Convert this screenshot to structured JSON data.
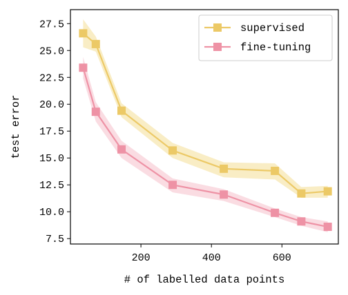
{
  "chart_data": {
    "type": "line",
    "xlabel": "# of labelled data points",
    "ylabel": "test error",
    "xlim": [
      0,
      760
    ],
    "ylim": [
      7.0,
      28.8
    ],
    "x_ticks": [
      200,
      400,
      600
    ],
    "x_tick_labels": [
      "200",
      "400",
      "600"
    ],
    "y_ticks": [
      7.5,
      10.0,
      12.5,
      15.0,
      17.5,
      20.0,
      22.5,
      25.0,
      27.5
    ],
    "y_tick_labels": [
      "7.5",
      "10.0",
      "12.5",
      "15.0",
      "17.5",
      "20.0",
      "22.5",
      "25.0",
      "27.5"
    ],
    "grid": false,
    "legend_position": "top-right",
    "series": [
      {
        "name": "supervised",
        "color": "#ECC966",
        "band_color": "#F3DB8C",
        "x": [
          36,
          72,
          145,
          290,
          435,
          580,
          655,
          730
        ],
        "y": [
          26.6,
          25.6,
          19.4,
          15.7,
          14.0,
          13.8,
          11.7,
          11.9
        ],
        "lower": [
          25.3,
          24.9,
          18.8,
          15.0,
          13.2,
          13.0,
          11.3,
          11.3
        ],
        "upper": [
          27.9,
          26.3,
          20.1,
          16.4,
          14.6,
          14.5,
          12.3,
          12.4
        ]
      },
      {
        "name": "fine-tuning",
        "color": "#EE92A5",
        "band_color": "#F5B9C5",
        "x": [
          36,
          72,
          145,
          290,
          435,
          580,
          655,
          730
        ],
        "y": [
          23.4,
          19.3,
          15.8,
          12.5,
          11.6,
          9.9,
          9.1,
          8.6
        ],
        "lower": [
          22.4,
          18.4,
          15.0,
          11.8,
          11.0,
          9.5,
          8.7,
          8.1
        ],
        "upper": [
          24.4,
          20.2,
          16.6,
          13.1,
          12.1,
          10.3,
          9.5,
          9.1
        ]
      }
    ]
  }
}
